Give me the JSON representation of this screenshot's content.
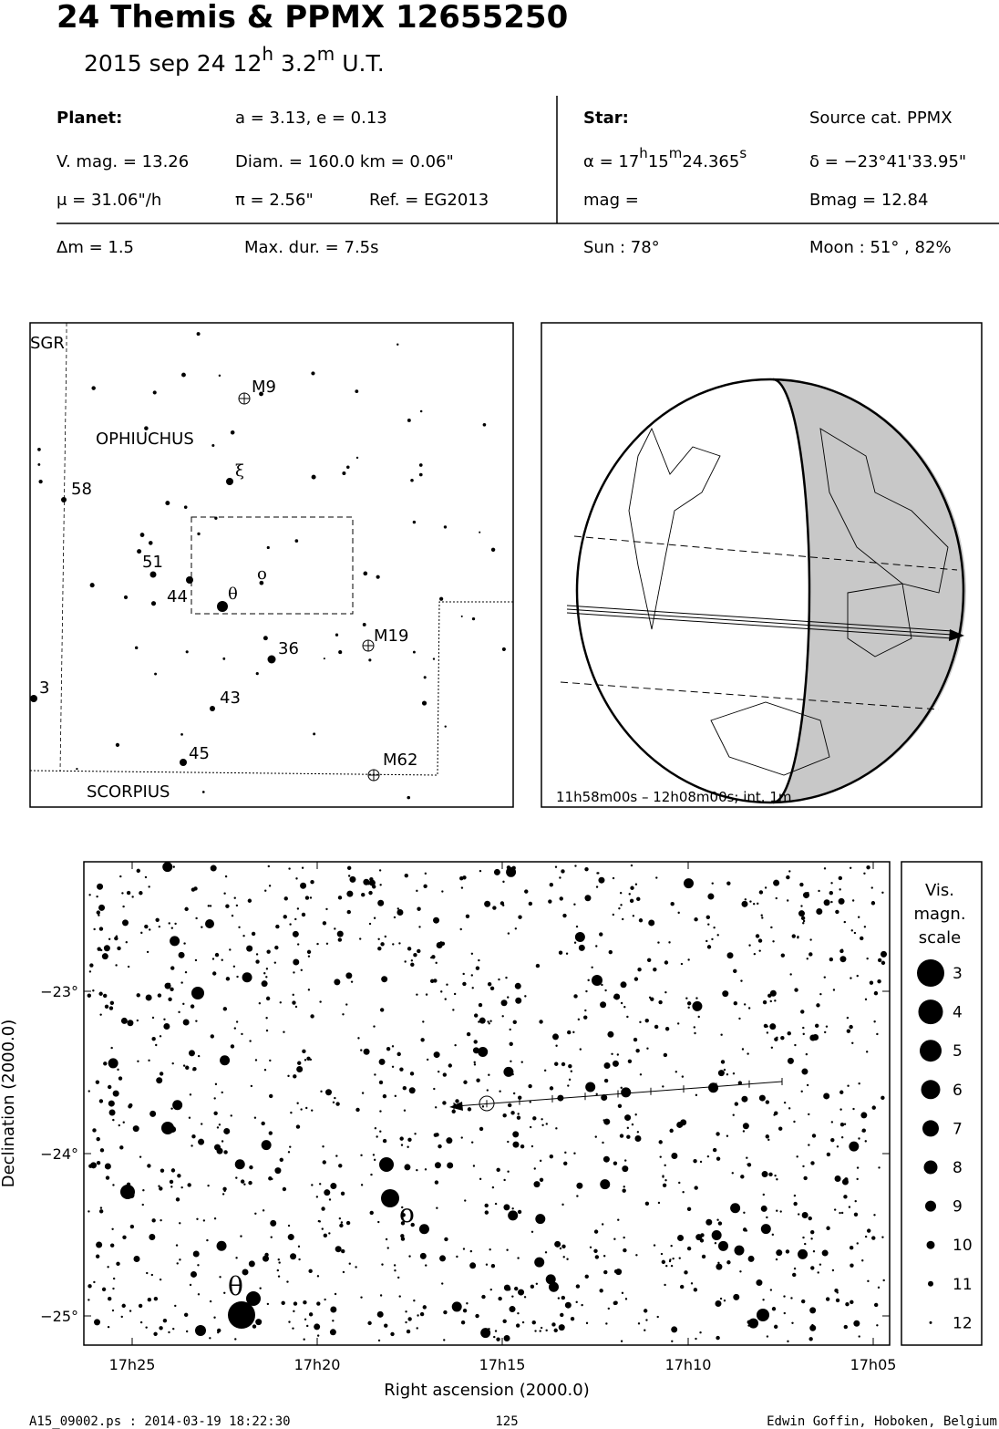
{
  "header": {
    "title": "24 Themis  &  PPMX 12655250",
    "subtitle": {
      "date": "2015 sep 24  12",
      "h": "h",
      "min": " 3.2",
      "m": "m",
      "ut": " U.T."
    }
  },
  "planet": {
    "label": "Planet:",
    "orbit": "a = 3.13, e = 0.13",
    "vmag": "V. mag. = 13.26",
    "diam": "Diam. = 160.0 km = 0.06\"",
    "motion": "μ =  31.06\"/h",
    "parallax": "π =  2.56\"",
    "ref": "Ref. = EG2013"
  },
  "star": {
    "label": "Star:",
    "source": "Source cat.  PPMX",
    "ra": {
      "pre": "α = 17",
      "h": "h",
      "min": "15",
      "m": "m",
      "sec": "24.365",
      "s": "s"
    },
    "dec": "δ = −23°41'33.95\"",
    "mag": " mag =",
    "bmag": "Bmag = 12.84"
  },
  "event": {
    "dm": "Δm = 1.5",
    "maxdur": "Max. dur. = 7.5s",
    "sun": "Sun :  78°",
    "moon": "Moon :  51° , 82%"
  },
  "finder": {
    "labels": [
      "SGR",
      "M9",
      "OPHIUCHUS",
      "ξ",
      "58",
      "51",
      "ο",
      "44",
      "θ",
      "M19",
      "36",
      "3",
      "43",
      "45",
      "M62",
      "SCORPIUS"
    ]
  },
  "globe": {
    "caption": "11h58m00s – 12h08m00s; int.  1m"
  },
  "starchart": {
    "yticks": [
      "−23°",
      "−24°",
      "−25°"
    ],
    "xticks": [
      "17h25",
      "17h20",
      "17h15",
      "17h10",
      "17h05"
    ],
    "xlabel": "Right ascension (2000.0)",
    "ylabel": "Declination (2000.0)",
    "names": [
      "θ",
      "ο"
    ],
    "legend": {
      "title": [
        "Vis.",
        "magn.",
        "scale"
      ],
      "mags": [
        3,
        4,
        5,
        6,
        7,
        8,
        9,
        10,
        11,
        12
      ]
    }
  },
  "footer": {
    "file": "A15_09002.ps : 2014-03-19 18:22:30",
    "page": "125",
    "author": "Edwin Goffin, Hoboken, Belgium"
  }
}
